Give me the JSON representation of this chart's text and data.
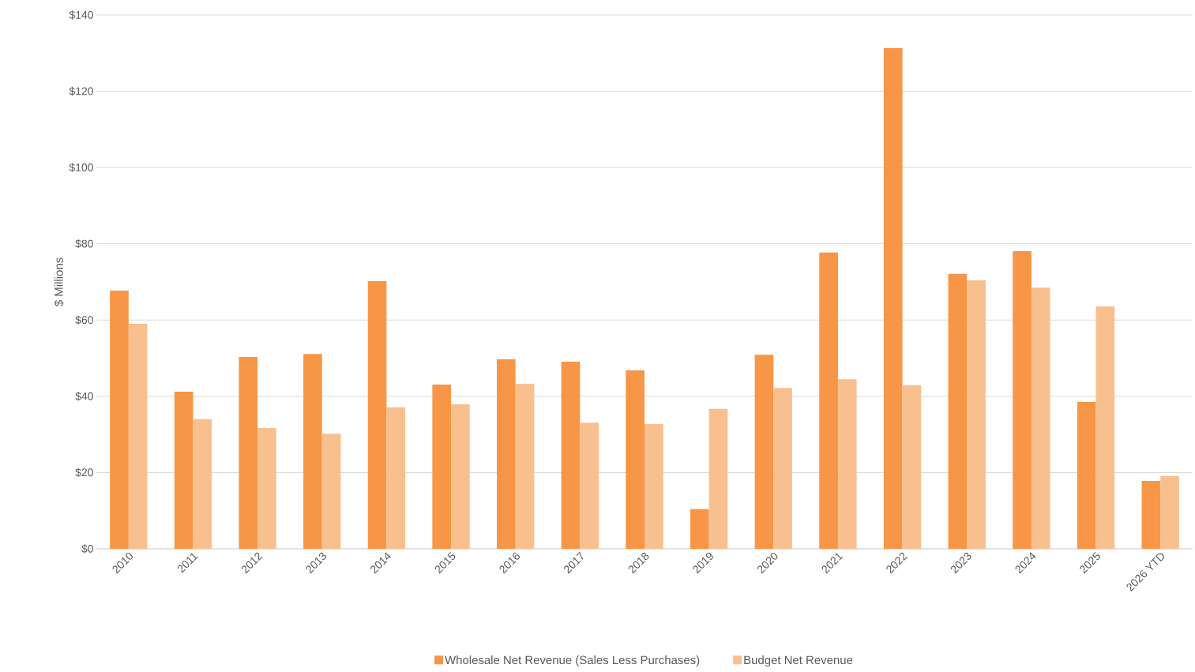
{
  "chart_data": {
    "type": "bar",
    "ylabel": "$ Millions",
    "categories": [
      "2010",
      "2011",
      "2012",
      "2013",
      "2014",
      "2015",
      "2016",
      "2017",
      "2018",
      "2019",
      "2020",
      "2021",
      "2022",
      "2023",
      "2024",
      "2025",
      "2026 YTD"
    ],
    "series": [
      {
        "name": "Wholesale Net Revenue (Sales Less Purchases)",
        "color": "#f79646",
        "values": [
          67.7,
          41.2,
          50.3,
          51.1,
          70.2,
          43.1,
          49.7,
          49.1,
          46.8,
          10.4,
          50.9,
          77.7,
          131.3,
          72.1,
          78.1,
          38.5,
          17.8
        ]
      },
      {
        "name": "Budget Net Revenue",
        "color": "#f9c08f",
        "values": [
          59.0,
          34.0,
          31.7,
          30.2,
          37.1,
          37.9,
          43.3,
          33.1,
          32.7,
          36.7,
          42.2,
          44.5,
          42.9,
          70.4,
          68.5,
          63.6,
          19.1
        ]
      }
    ],
    "ylim": [
      0,
      140
    ],
    "yticks": [
      {
        "value": 0,
        "label": "$0"
      },
      {
        "value": 20,
        "label": "$20"
      },
      {
        "value": 40,
        "label": "$40"
      },
      {
        "value": 60,
        "label": "$60"
      },
      {
        "value": 80,
        "label": "$80"
      },
      {
        "value": 100,
        "label": "$100"
      },
      {
        "value": 120,
        "label": "$120"
      },
      {
        "value": 140,
        "label": "$140"
      }
    ],
    "grid": "y",
    "legend": "bottom"
  }
}
